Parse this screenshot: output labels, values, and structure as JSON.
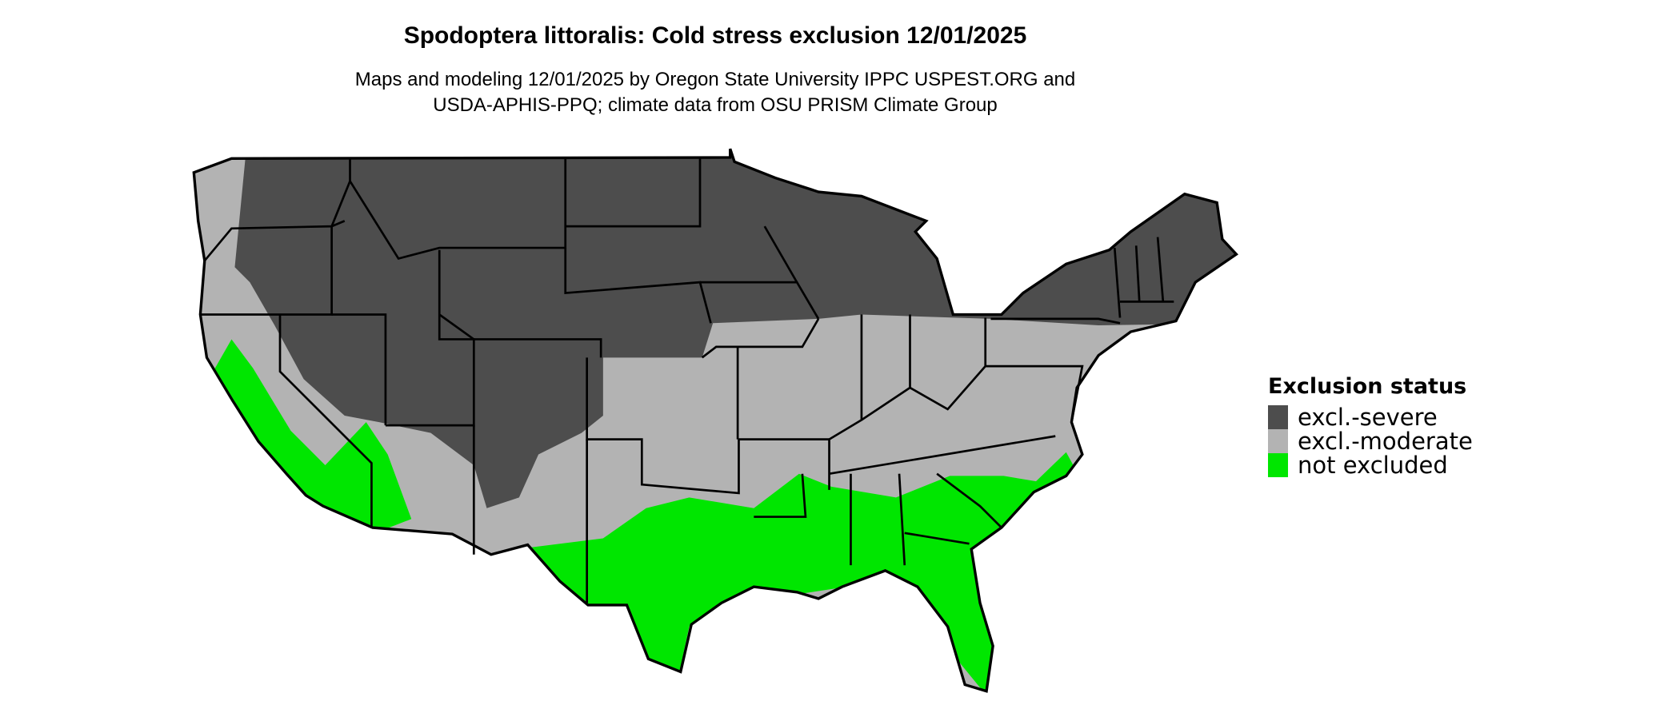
{
  "header": {
    "title": "Spodoptera littoralis: Cold stress exclusion 12/01/2025",
    "subtitle_line1": "Maps and modeling 12/01/2025 by Oregon State University IPPC USPEST.ORG and",
    "subtitle_line2": "USDA-APHIS-PPQ; climate data from OSU PRISM Climate Group"
  },
  "legend": {
    "title": "Exclusion status",
    "items": [
      {
        "label": "excl.-severe",
        "color": "#4d4d4d"
      },
      {
        "label": "excl.-moderate",
        "color": "#b3b3b3"
      },
      {
        "label": "not excluded",
        "color": "#00e600"
      }
    ]
  },
  "map": {
    "region": "Contiguous United States",
    "border_color": "#000000"
  }
}
